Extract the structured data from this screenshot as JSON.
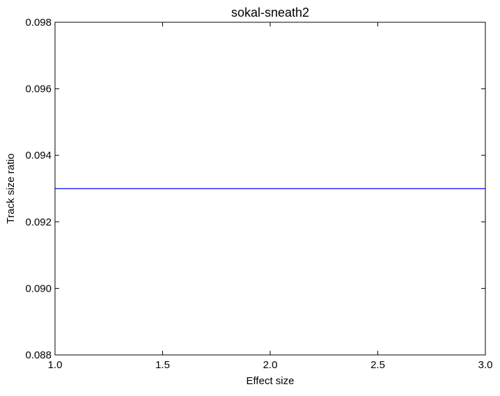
{
  "chart_data": {
    "type": "line",
    "title": "sokal-sneath2",
    "xlabel": "Effect size",
    "ylabel": "Track size ratio",
    "xlim": [
      1.0,
      3.0
    ],
    "ylim": [
      0.088,
      0.098
    ],
    "x_ticks": [
      "1.0",
      "1.5",
      "2.0",
      "2.5",
      "3.0"
    ],
    "y_ticks": [
      "0.088",
      "0.090",
      "0.092",
      "0.094",
      "0.096",
      "0.098"
    ],
    "grid": false,
    "series": [
      {
        "color": "#0000ff",
        "x": [
          1.0,
          3.0
        ],
        "y": [
          0.093,
          0.093
        ]
      }
    ]
  }
}
